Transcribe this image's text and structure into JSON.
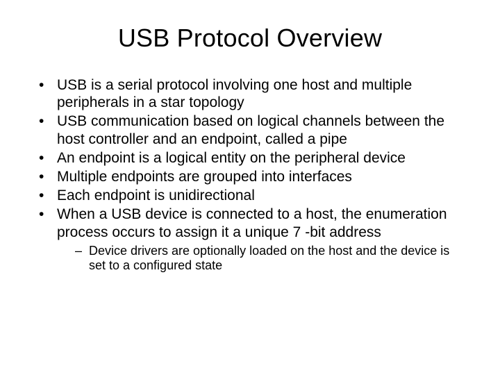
{
  "slide": {
    "title": "USB Protocol Overview",
    "bullets": [
      "USB is a serial protocol involving one host and multiple peripherals in a star topology",
      "USB communication based on logical channels between the host controller and an endpoint, called a pipe",
      "An endpoint is a logical entity on the peripheral device",
      "Multiple endpoints are grouped into interfaces",
      "Each endpoint is unidirectional",
      "When a USB device is connected to a host, the enumeration process occurs to assign it a unique 7 -bit address"
    ],
    "sub_bullets": [
      "Device drivers are optionally loaded on the host and the device is set to a configured state"
    ]
  },
  "style": {
    "background_color": "#ffffff",
    "text_color": "#000000",
    "title_fontsize": 36,
    "body_fontsize": 21,
    "sub_fontsize": 18,
    "font_family": "Arial"
  }
}
